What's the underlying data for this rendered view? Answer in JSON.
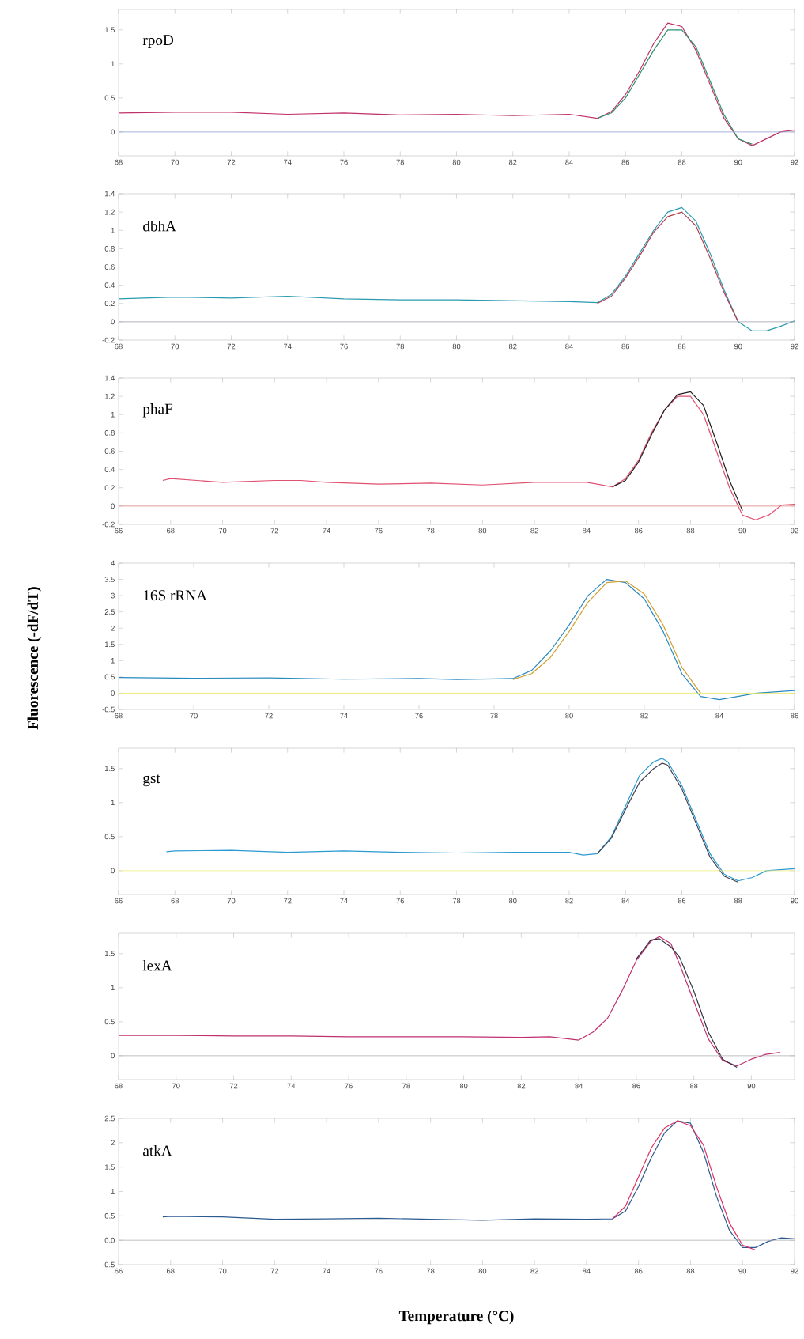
{
  "chart_data": [
    {
      "type": "line",
      "annotations": [
        "rpoD"
      ],
      "xlim": [
        68,
        92
      ],
      "ylim": [
        -0.35,
        1.8
      ],
      "xticks": [
        68,
        70,
        72,
        74,
        76,
        78,
        80,
        82,
        84,
        86,
        88,
        90,
        92
      ],
      "yticks": [
        0,
        0.5,
        1,
        1.5
      ],
      "ref_lines": [
        {
          "axis": "y",
          "value": 0,
          "color": "#8f9fd0"
        }
      ],
      "series": [
        {
          "color": "#c0306a",
          "x": [
            68,
            70,
            72,
            74,
            76,
            78,
            80,
            82,
            84,
            85,
            85.5,
            86,
            86.5,
            87,
            87.5,
            88,
            88.5,
            89,
            89.5,
            90,
            90.5,
            91,
            91.5,
            92
          ],
          "values": [
            0.28,
            0.29,
            0.29,
            0.26,
            0.28,
            0.25,
            0.26,
            0.24,
            0.26,
            0.2,
            0.3,
            0.55,
            0.9,
            1.3,
            1.6,
            1.55,
            1.2,
            0.7,
            0.2,
            -0.1,
            -0.2,
            -0.1,
            0.0,
            0.03
          ]
        },
        {
          "color": "#2f8f6f",
          "x": [
            85,
            85.5,
            86,
            86.5,
            87,
            87.5,
            88,
            88.5,
            89,
            89.5,
            90,
            90.5
          ],
          "values": [
            0.2,
            0.28,
            0.5,
            0.85,
            1.2,
            1.5,
            1.5,
            1.25,
            0.75,
            0.25,
            -0.1,
            -0.18
          ]
        }
      ]
    },
    {
      "type": "line",
      "annotations": [
        "dbhA"
      ],
      "xlim": [
        68,
        92
      ],
      "ylim": [
        -0.2,
        1.4
      ],
      "xticks": [
        68,
        70,
        72,
        74,
        76,
        78,
        80,
        82,
        84,
        86,
        88,
        90,
        92
      ],
      "yticks": [
        -0.2,
        0,
        0.2,
        0.4,
        0.6,
        0.8,
        1,
        1.2,
        1.4
      ],
      "ref_lines": [
        {
          "axis": "y",
          "value": 0,
          "color": "#a0a0b0"
        }
      ],
      "series": [
        {
          "color": "#2a9ab0",
          "x": [
            68,
            70,
            72,
            74,
            76,
            78,
            80,
            82,
            84,
            85,
            85.5,
            86,
            86.5,
            87,
            87.5,
            88,
            88.5,
            89,
            89.5,
            90,
            90.5,
            91,
            91.5,
            92
          ],
          "values": [
            0.25,
            0.27,
            0.26,
            0.28,
            0.25,
            0.24,
            0.24,
            0.23,
            0.22,
            0.21,
            0.3,
            0.5,
            0.75,
            1.0,
            1.2,
            1.25,
            1.1,
            0.75,
            0.35,
            0.0,
            -0.1,
            -0.1,
            -0.05,
            0.01
          ]
        },
        {
          "color": "#b04050",
          "x": [
            85,
            85.5,
            86,
            86.5,
            87,
            87.5,
            88,
            88.5,
            89,
            89.5,
            90
          ],
          "values": [
            0.2,
            0.28,
            0.48,
            0.72,
            0.98,
            1.15,
            1.2,
            1.05,
            0.7,
            0.32,
            0.0
          ]
        }
      ]
    },
    {
      "type": "line",
      "annotations": [
        "phaF"
      ],
      "xlim": [
        66,
        92
      ],
      "ylim": [
        -0.2,
        1.4
      ],
      "xticks": [
        66,
        68,
        70,
        72,
        74,
        76,
        78,
        80,
        82,
        84,
        86,
        88,
        90,
        92
      ],
      "yticks": [
        -0.2,
        0,
        0.2,
        0.4,
        0.6,
        0.8,
        1,
        1.2,
        1.4
      ],
      "ref_lines": [
        {
          "axis": "y",
          "value": 0,
          "color": "#e08080"
        }
      ],
      "series": [
        {
          "color": "#e05070",
          "x": [
            67.7,
            68,
            70,
            72,
            73,
            74,
            76,
            78,
            80,
            82,
            84,
            85,
            85.5,
            86,
            86.5,
            87,
            87.5,
            88,
            88.5,
            89,
            89.5,
            90,
            90.5,
            91,
            91.5,
            92
          ],
          "values": [
            0.28,
            0.3,
            0.26,
            0.28,
            0.28,
            0.26,
            0.24,
            0.25,
            0.23,
            0.26,
            0.26,
            0.21,
            0.3,
            0.5,
            0.8,
            1.05,
            1.2,
            1.2,
            1.0,
            0.6,
            0.2,
            -0.1,
            -0.15,
            -0.1,
            0.01,
            0.02
          ]
        },
        {
          "color": "#202020",
          "x": [
            85,
            85.5,
            86,
            86.5,
            87,
            87.5,
            88,
            88.5,
            89,
            89.5,
            90
          ],
          "values": [
            0.21,
            0.28,
            0.48,
            0.78,
            1.05,
            1.22,
            1.25,
            1.1,
            0.7,
            0.28,
            -0.05
          ]
        }
      ]
    },
    {
      "type": "line",
      "annotations": [
        "16S rRNA"
      ],
      "ylabel": "Fluorescence (-dF/dT)",
      "xlim": [
        68,
        86
      ],
      "ylim": [
        -0.5,
        4
      ],
      "xticks": [
        68,
        70,
        72,
        74,
        76,
        78,
        80,
        82,
        84,
        86
      ],
      "yticks": [
        -0.5,
        0,
        0.5,
        1,
        1.5,
        2,
        2.5,
        3,
        3.5,
        4
      ],
      "ref_lines": [
        {
          "axis": "y",
          "value": 0,
          "color": "#e8e860"
        }
      ],
      "series": [
        {
          "color": "#2a8ac0",
          "x": [
            68,
            70,
            72,
            74,
            76,
            77,
            78,
            78.5,
            79,
            79.5,
            80,
            80.5,
            81,
            81.5,
            82,
            82.5,
            83,
            83.5,
            84,
            85,
            86
          ],
          "values": [
            0.48,
            0.46,
            0.47,
            0.43,
            0.45,
            0.42,
            0.44,
            0.45,
            0.7,
            1.3,
            2.1,
            3.0,
            3.5,
            3.4,
            2.9,
            1.9,
            0.6,
            -0.1,
            -0.2,
            0.0,
            0.08
          ]
        },
        {
          "color": "#d0a030",
          "x": [
            78.5,
            79,
            79.5,
            80,
            80.5,
            81,
            81.5,
            82,
            82.5,
            83,
            83.5
          ],
          "values": [
            0.42,
            0.6,
            1.1,
            1.9,
            2.8,
            3.4,
            3.45,
            3.05,
            2.1,
            0.8,
            0.0
          ]
        }
      ]
    },
    {
      "type": "line",
      "annotations": [
        "gst"
      ],
      "xlim": [
        66,
        90
      ],
      "ylim": [
        -0.35,
        1.8
      ],
      "xticks": [
        66,
        68,
        70,
        72,
        74,
        76,
        78,
        80,
        82,
        84,
        86,
        88,
        90
      ],
      "yticks": [
        0,
        0.5,
        1,
        1.5
      ],
      "ref_lines": [
        {
          "axis": "y",
          "value": 0,
          "color": "#f0f080"
        }
      ],
      "series": [
        {
          "color": "#2a9ad0",
          "x": [
            67.7,
            68,
            70,
            72,
            74,
            76,
            78,
            80,
            82,
            82.5,
            83,
            83.5,
            84,
            84.5,
            85,
            85.3,
            85.5,
            86,
            86.5,
            87,
            87.5,
            88,
            88.5,
            89,
            90
          ],
          "values": [
            0.28,
            0.29,
            0.3,
            0.27,
            0.29,
            0.27,
            0.26,
            0.27,
            0.27,
            0.23,
            0.25,
            0.5,
            0.95,
            1.4,
            1.6,
            1.65,
            1.6,
            1.25,
            0.75,
            0.25,
            -0.05,
            -0.15,
            -0.1,
            0.0,
            0.03
          ]
        },
        {
          "color": "#404050",
          "x": [
            83,
            83.5,
            84,
            84.5,
            85,
            85.3,
            85.5,
            86,
            86.5,
            87,
            87.5,
            88
          ],
          "values": [
            0.25,
            0.48,
            0.9,
            1.3,
            1.5,
            1.58,
            1.55,
            1.2,
            0.7,
            0.2,
            -0.08,
            -0.17
          ]
        }
      ]
    },
    {
      "type": "line",
      "annotations": [
        "lexA"
      ],
      "xlim": [
        68,
        91.5
      ],
      "ylim": [
        -0.35,
        1.8
      ],
      "xticks": [
        68,
        70,
        72,
        74,
        76,
        78,
        80,
        82,
        84,
        86,
        88,
        90
      ],
      "yticks": [
        0,
        0.5,
        1,
        1.5
      ],
      "ref_lines": [
        {
          "axis": "y",
          "value": 0,
          "color": "#b0b0b0"
        }
      ],
      "series": [
        {
          "color": "#c03070",
          "x": [
            68,
            70,
            72,
            74,
            76,
            78,
            80,
            82,
            83,
            84,
            84.5,
            85,
            85.5,
            86,
            86.5,
            86.8,
            87.2,
            87.5,
            88,
            88.5,
            89,
            89.5,
            90,
            90.5,
            91
          ],
          "values": [
            0.3,
            0.3,
            0.29,
            0.29,
            0.28,
            0.28,
            0.28,
            0.27,
            0.28,
            0.23,
            0.35,
            0.55,
            0.95,
            1.4,
            1.68,
            1.75,
            1.65,
            1.35,
            0.8,
            0.25,
            -0.07,
            -0.15,
            -0.05,
            0.02,
            0.05
          ]
        },
        {
          "color": "#303040",
          "x": [
            86,
            86.5,
            86.8,
            87.2,
            87.5,
            88,
            88.5,
            89,
            89.5
          ],
          "values": [
            1.42,
            1.7,
            1.72,
            1.6,
            1.45,
            0.95,
            0.35,
            -0.05,
            -0.17
          ]
        }
      ]
    },
    {
      "type": "line",
      "annotations": [
        "atkA"
      ],
      "xlabel": "Temperature (°C)",
      "xlim": [
        66,
        92
      ],
      "ylim": [
        -0.5,
        2.5
      ],
      "xticks": [
        66,
        68,
        70,
        72,
        74,
        76,
        78,
        80,
        82,
        84,
        86,
        88,
        90,
        92
      ],
      "yticks": [
        -0.5,
        {
          "value": 0,
          "label": "0.0"
        },
        0.5,
        1,
        1.5,
        2,
        2.5
      ],
      "ref_lines": [
        {
          "axis": "y",
          "value": 0,
          "color": "#b0b0b0"
        }
      ],
      "series": [
        {
          "color": "#2a5a90",
          "x": [
            67.7,
            68,
            70,
            72,
            74,
            76,
            78,
            80,
            82,
            84,
            85,
            85.5,
            86,
            86.5,
            87,
            87.5,
            88,
            88.5,
            89,
            89.5,
            90,
            90.5,
            91,
            91.5,
            92
          ],
          "values": [
            0.48,
            0.49,
            0.48,
            0.43,
            0.44,
            0.45,
            0.43,
            0.41,
            0.44,
            0.43,
            0.44,
            0.6,
            1.1,
            1.7,
            2.2,
            2.45,
            2.4,
            1.8,
            0.9,
            0.2,
            -0.15,
            -0.15,
            -0.02,
            0.05,
            0.03
          ]
        },
        {
          "color": "#e03060",
          "x": [
            85,
            85.5,
            86,
            86.5,
            87,
            87.5,
            88,
            88.5,
            89,
            89.5,
            90,
            90.5
          ],
          "values": [
            0.44,
            0.7,
            1.3,
            1.9,
            2.3,
            2.45,
            2.35,
            1.95,
            1.1,
            0.35,
            -0.1,
            -0.2
          ]
        }
      ]
    }
  ]
}
